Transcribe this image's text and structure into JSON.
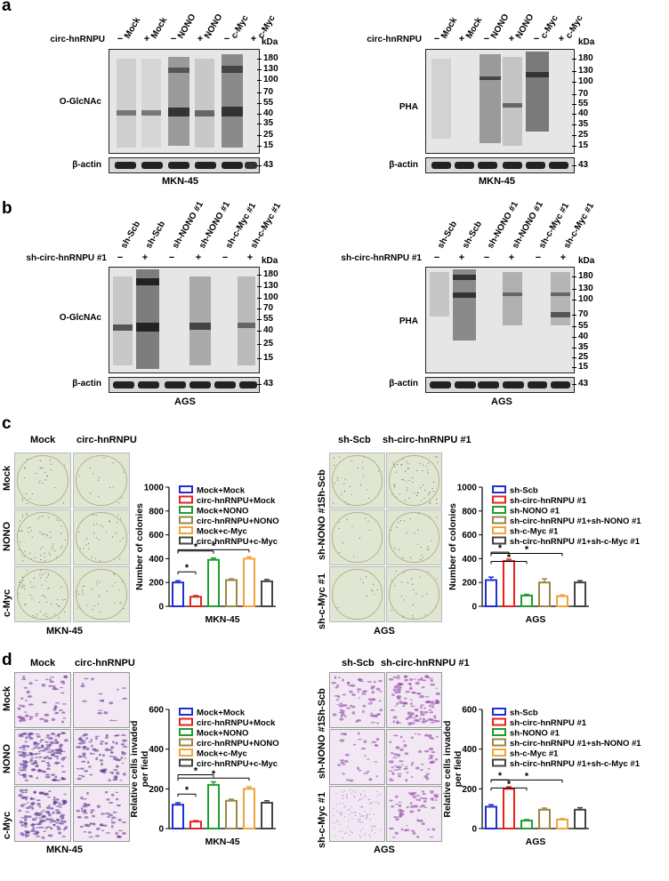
{
  "panel_a": {
    "letter": "a",
    "left": {
      "lanes": [
        "Mock",
        "Mock",
        "NONO",
        "NONO",
        "c-Myc",
        "c-Myc"
      ],
      "treatment_label": "circ-hnRNPU",
      "signs": [
        "−",
        "+",
        "−",
        "+",
        "−",
        "+"
      ],
      "kda": "kDa",
      "markers": [
        "180",
        "130",
        "100",
        "70",
        "55",
        "40",
        "35",
        "25",
        "15"
      ],
      "blot_label": "O-GlcNAc",
      "actin_label": "β-actin",
      "actin_kda": "43",
      "cell_line": "MKN-45"
    },
    "right": {
      "lanes": [
        "Mock",
        "Mock",
        "NONO",
        "NONO",
        "c-Myc",
        "c-Myc"
      ],
      "treatment_label": "circ-hnRNPU",
      "signs": [
        "−",
        "+",
        "−",
        "+",
        "−",
        "+"
      ],
      "kda": "kDa",
      "markers": [
        "180",
        "130",
        "100",
        "70",
        "55",
        "40",
        "35",
        "25",
        "15"
      ],
      "blot_label": "PHA",
      "actin_label": "β-actin",
      "actin_kda": "43",
      "cell_line": "MKN-45"
    }
  },
  "panel_b": {
    "letter": "b",
    "left": {
      "lanes": [
        "sh-Scb",
        "sh-Scb",
        "sh-NONO #1",
        "sh-NONO #1",
        "sh-c-Myc #1",
        "sh-c-Myc #1"
      ],
      "treatment_label": "sh-circ-hnRNPU #1",
      "signs": [
        "−",
        "+",
        "−",
        "+",
        "−",
        "+"
      ],
      "kda": "kDa",
      "markers": [
        "180",
        "130",
        "100",
        "70",
        "55",
        "40",
        "25",
        "15"
      ],
      "blot_label": "O-GlcNAc",
      "actin_label": "β-actin",
      "actin_kda": "43",
      "cell_line": "AGS"
    },
    "right": {
      "lanes": [
        "sh-Scb",
        "sh-Scb",
        "sh-NONO #1",
        "sh-NONO #1",
        "sh-c-Myc #1",
        "sh-c-Myc #1"
      ],
      "treatment_label": "sh-circ-hnRNPU #1",
      "signs": [
        "−",
        "+",
        "−",
        "+",
        "−",
        "+"
      ],
      "kda": "kDa",
      "markers": [
        "180",
        "130",
        "100",
        "70",
        "55",
        "40",
        "35",
        "25",
        "15"
      ],
      "blot_label": "PHA",
      "actin_label": "β-actin",
      "actin_kda": "43",
      "cell_line": "AGS"
    }
  },
  "panel_c": {
    "letter": "c",
    "left": {
      "col_labels": [
        "Mock",
        "circ-hnRNPU"
      ],
      "row_labels": [
        "Mock",
        "NONO",
        "c-Myc"
      ],
      "cell_line": "MKN-45"
    },
    "right": {
      "col_labels": [
        "sh-Scb",
        "sh-circ-hnRNPU #1"
      ],
      "row_labels": [
        "Sh-Scb",
        "sh-NONO #1",
        "sh-c-Myc #1"
      ],
      "cell_line": "AGS"
    }
  },
  "panel_d": {
    "letter": "d",
    "left": {
      "col_labels": [
        "Mock",
        "circ-hnRNPU"
      ],
      "row_labels": [
        "Mock",
        "NONO",
        "c-Myc"
      ],
      "cell_line": "MKN-45"
    },
    "right": {
      "col_labels": [
        "sh-Scb",
        "sh-circ-hnRNPU #1"
      ],
      "row_labels": [
        "Sh-Scb",
        "sh-NONO #1",
        "sh-c-Myc #1"
      ],
      "cell_line": "AGS"
    }
  },
  "chart_data": [
    {
      "type": "bar",
      "panel": "c-left",
      "categories": [
        "Mock+Mock",
        "circ-hnRNPU+Mock",
        "Mock+NONO",
        "circ-hnRNPU+NONO",
        "Mock+c-Myc",
        "circ-hnRNPU+c-Myc"
      ],
      "values": [
        200,
        80,
        390,
        220,
        400,
        210
      ],
      "errors": [
        15,
        10,
        15,
        10,
        15,
        15
      ],
      "colors": [
        "#1f2fd6",
        "#e8221b",
        "#1e9e2c",
        "#9b8648",
        "#f2a33a",
        "#444444"
      ],
      "xlabel": "MKN-45",
      "ylabel": "Number of colonies",
      "ylim": [
        0,
        1000
      ],
      "yticks": [
        "0",
        "200",
        "400",
        "600",
        "800",
        "1000"
      ],
      "significance": [
        [
          0,
          1
        ],
        [
          0,
          2
        ],
        [
          0,
          4
        ]
      ],
      "sig_mark": "*",
      "legend": "top-right"
    },
    {
      "type": "bar",
      "panel": "c-right",
      "categories": [
        "sh-Scb",
        "sh-circ-hnRNPU #1",
        "sh-NONO #1",
        "sh-circ-hnRNPU #1+sh-NONO #1",
        "sh-c-Myc #1",
        "sh-circ-hnRNPU #1+sh-c-Myc #1"
      ],
      "values": [
        220,
        380,
        90,
        200,
        85,
        200
      ],
      "errors": [
        25,
        15,
        10,
        30,
        10,
        15
      ],
      "colors": [
        "#1f2fd6",
        "#e8221b",
        "#1e9e2c",
        "#9b8648",
        "#f2a33a",
        "#444444"
      ],
      "xlabel": "AGS",
      "ylabel": "Number of colonies",
      "ylim": [
        0,
        1000
      ],
      "yticks": [
        "0",
        "200",
        "400",
        "600",
        "800",
        "1000"
      ],
      "significance": [
        [
          0,
          1
        ],
        [
          0,
          2
        ],
        [
          0,
          4
        ]
      ],
      "sig_mark": "*",
      "legend": "top-right"
    },
    {
      "type": "bar",
      "panel": "d-left",
      "categories": [
        "Mock+Mock",
        "circ-hnRNPU+Mock",
        "Mock+NONO",
        "circ-hnRNPU+NONO",
        "Mock+c-Myc",
        "circ-hnRNPU+c-Myc"
      ],
      "values": [
        120,
        35,
        220,
        140,
        200,
        130
      ],
      "errors": [
        10,
        5,
        15,
        8,
        10,
        10
      ],
      "colors": [
        "#1f2fd6",
        "#e8221b",
        "#1e9e2c",
        "#9b8648",
        "#f2a33a",
        "#444444"
      ],
      "xlabel": "MKN-45",
      "ylabel": "Relative cells invaded per field",
      "ylim": [
        0,
        600
      ],
      "yticks": [
        "0",
        "200",
        "400",
        "600"
      ],
      "significance": [
        [
          0,
          1
        ],
        [
          0,
          2
        ],
        [
          0,
          4
        ]
      ],
      "sig_mark": "*",
      "legend": "top-right"
    },
    {
      "type": "bar",
      "panel": "d-right",
      "categories": [
        "sh-Scb",
        "sh-circ-hnRNPU #1",
        "sh-NONO #1",
        "sh-circ-hnRNPU #1+sh-NONO #1",
        "sh-c-Myc #1",
        "sh-circ-hnRNPU #1+sh-c-Myc #1"
      ],
      "values": [
        110,
        200,
        40,
        95,
        45,
        95
      ],
      "errors": [
        10,
        10,
        5,
        8,
        5,
        10
      ],
      "colors": [
        "#1f2fd6",
        "#e8221b",
        "#1e9e2c",
        "#9b8648",
        "#f2a33a",
        "#444444"
      ],
      "xlabel": "AGS",
      "ylabel": "Relative cells invaded per field",
      "ylim": [
        0,
        600
      ],
      "yticks": [
        "0",
        "200",
        "400",
        "600"
      ],
      "significance": [
        [
          0,
          1
        ],
        [
          0,
          2
        ],
        [
          0,
          4
        ]
      ],
      "sig_mark": "*",
      "legend": "top-right"
    }
  ]
}
